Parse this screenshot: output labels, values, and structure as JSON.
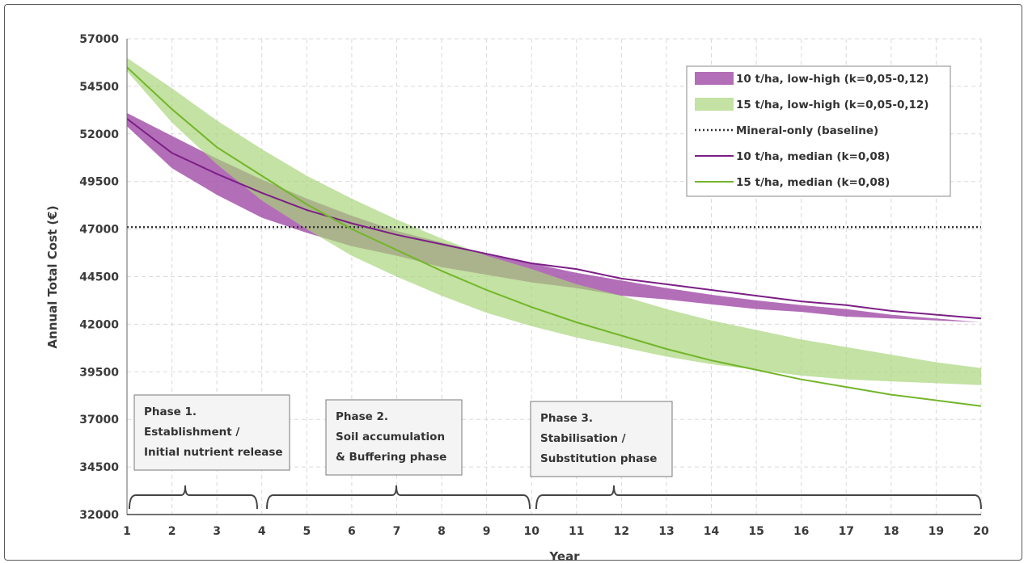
{
  "chart_data": {
    "type": "line",
    "title": "",
    "xlabel": "Year",
    "ylabel": "Annual Total Cost (€)",
    "x": [
      1,
      2,
      3,
      4,
      5,
      6,
      7,
      8,
      9,
      10,
      11,
      12,
      13,
      14,
      15,
      16,
      17,
      18,
      19,
      20
    ],
    "x_ticks": [
      "1",
      "2",
      "3",
      "4",
      "5",
      "6",
      "7",
      "8",
      "9",
      "10",
      "11",
      "12",
      "13",
      "14",
      "15",
      "16",
      "17",
      "18",
      "19",
      "20"
    ],
    "y_ticks": [
      "32000",
      "34500",
      "37000",
      "39500",
      "42000",
      "44500",
      "47000",
      "49500",
      "52000",
      "54500",
      "57000"
    ],
    "y_tick_values": [
      32000,
      34500,
      37000,
      39500,
      42000,
      44500,
      47000,
      49500,
      52000,
      54500,
      57000
    ],
    "xlim": [
      1,
      20
    ],
    "ylim": [
      32000,
      57000
    ],
    "grid": true,
    "legend_position": "top-right",
    "colors": {
      "band10": "#a24ea8",
      "band15": "#a6d478",
      "line10": "#7b1f86",
      "line15": "#73b52a",
      "baseline": "#333333"
    },
    "bands": [
      {
        "name": "10 t/ha, low-high (k=0,05-0,12)",
        "low": [
          52400,
          50200,
          48800,
          47600,
          46800,
          46100,
          45600,
          45000,
          44600,
          44200,
          43900,
          43500,
          43300,
          43050,
          42800,
          42650,
          42400,
          42300,
          42200,
          42100
        ],
        "high": [
          53100,
          51900,
          50700,
          49600,
          48600,
          47700,
          46900,
          46300,
          45700,
          45200,
          44700,
          44300,
          43900,
          43550,
          43250,
          43000,
          42800,
          42500,
          42300,
          42100
        ]
      },
      {
        "name": "15 t/ha, low-high (k=0,05-0,12)",
        "low": [
          55300,
          52600,
          50400,
          48500,
          47000,
          45600,
          44500,
          43500,
          42600,
          41900,
          41300,
          40800,
          40300,
          39900,
          39600,
          39300,
          39100,
          39000,
          38900,
          38800
        ],
        "high": [
          56000,
          54400,
          52700,
          51200,
          49800,
          48600,
          47500,
          46500,
          45600,
          44900,
          44100,
          43500,
          42800,
          42200,
          41700,
          41200,
          40800,
          40400,
          40000,
          39700
        ]
      }
    ],
    "series": [
      {
        "name": "Mineral-only (baseline)",
        "style": "dotted",
        "values": [
          47100,
          47100,
          47100,
          47100,
          47100,
          47100,
          47100,
          47100,
          47100,
          47100,
          47100,
          47100,
          47100,
          47100,
          47100,
          47100,
          47100,
          47100,
          47100,
          47100
        ]
      },
      {
        "name": "10 t/ha, median (k=0,08)",
        "values": [
          52800,
          51000,
          49900,
          48900,
          48000,
          47300,
          46700,
          46200,
          45700,
          45200,
          44900,
          44400,
          44100,
          43800,
          43500,
          43200,
          43000,
          42700,
          42500,
          42300
        ]
      },
      {
        "name": "15 t/ha, median (k=0,08)",
        "values": [
          55500,
          53300,
          51300,
          49800,
          48300,
          47000,
          45900,
          44800,
          43800,
          42900,
          42100,
          41400,
          40700,
          40100,
          39600,
          39100,
          38700,
          38300,
          38000,
          37700
        ]
      }
    ],
    "legend": [
      {
        "label": "10 t/ha, low-high (k=0,05-0,12)",
        "kind": "band",
        "color": "#a24ea8"
      },
      {
        "label": "15 t/ha, low-high (k=0,05-0,12)",
        "kind": "band",
        "color": "#a6d478"
      },
      {
        "label": "Mineral-only (baseline)",
        "kind": "dotted",
        "color": "#333333"
      },
      {
        "label": "10 t/ha, median (k=0,08)",
        "kind": "line",
        "color": "#7b1f86"
      },
      {
        "label": "15 t/ha, median (k=0,08)",
        "kind": "line",
        "color": "#73b52a"
      }
    ],
    "annotations": [
      {
        "lines": [
          "Phase 1.",
          "Establishment /",
          "Initial nutrient release"
        ],
        "span": [
          1,
          4
        ]
      },
      {
        "lines": [
          "Phase 2.",
          "Soil accumulation",
          "& Buffering phase"
        ],
        "span": [
          4,
          10
        ]
      },
      {
        "lines": [
          "Phase 3.",
          "Stabilisation /",
          "Substitution phase"
        ],
        "span": [
          10,
          20
        ]
      }
    ]
  }
}
